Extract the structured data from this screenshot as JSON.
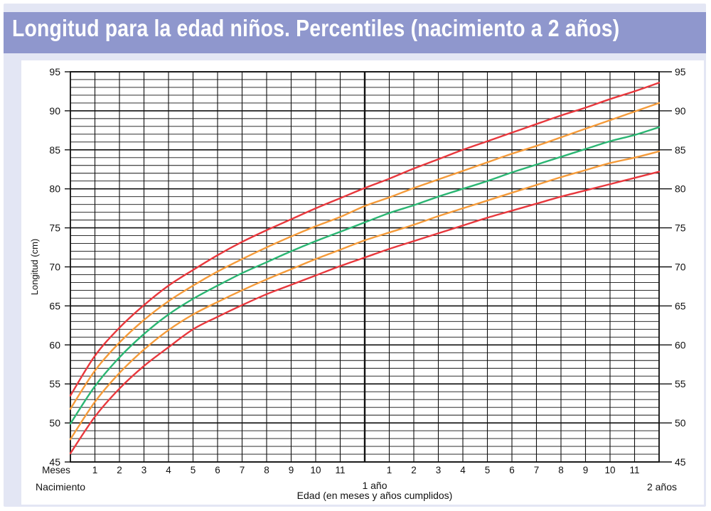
{
  "header": {
    "title": "Longitud para la edad niños. Percentiles (nacimiento a 2 años)"
  },
  "chart_data": {
    "type": "line",
    "title": "Longitud para la edad niños. Percentiles (nacimiento a 2 años)",
    "ylabel": "Longitud (cm)",
    "xlabel": "Edad (en meses y años cumplidos)",
    "xlim": [
      0,
      24
    ],
    "ylim": [
      45,
      95
    ],
    "grid": true,
    "y_ticks": [
      45,
      50,
      55,
      60,
      65,
      70,
      75,
      80,
      85,
      90,
      95
    ],
    "x_tick_labels": [
      "1",
      "2",
      "3",
      "4",
      "5",
      "6",
      "7",
      "8",
      "9",
      "10",
      "11",
      "1",
      "2",
      "3",
      "4",
      "5",
      "6",
      "7",
      "8",
      "9",
      "10",
      "11"
    ],
    "x_axis_caption": "Meses",
    "x_start_label": "Nacimiento",
    "x_mid_label": "1 año",
    "x_end_label": "2 años",
    "colors": {
      "outer": "#e8383d",
      "mid": "#f59b3a",
      "median": "#2bb673",
      "grid": "#111111",
      "title_bar": "#8f97cd",
      "frame": "#e3e6f4"
    },
    "x": [
      0,
      1,
      2,
      3,
      4,
      5,
      6,
      7,
      8,
      9,
      10,
      11,
      12,
      13,
      14,
      15,
      16,
      17,
      18,
      19,
      20,
      21,
      22,
      23,
      24
    ],
    "series": [
      {
        "role": "outer",
        "values": [
          53.5,
          58.6,
          62.2,
          65.1,
          67.6,
          69.6,
          71.5,
          73.2,
          74.7,
          76.1,
          77.5,
          78.8,
          80.1,
          81.3,
          82.6,
          83.8,
          85.0,
          86.1,
          87.2,
          88.3,
          89.4,
          90.4,
          91.5,
          92.5,
          93.6
        ]
      },
      {
        "role": "mid",
        "values": [
          51.8,
          56.7,
          60.3,
          63.2,
          65.6,
          67.6,
          69.4,
          71.0,
          72.5,
          73.9,
          75.2,
          76.4,
          77.8,
          78.9,
          80.1,
          81.2,
          82.3,
          83.4,
          84.5,
          85.5,
          86.6,
          87.7,
          88.8,
          89.9,
          91.0
        ]
      },
      {
        "role": "median",
        "values": [
          49.9,
          54.7,
          58.4,
          61.4,
          63.9,
          65.9,
          67.6,
          69.2,
          70.6,
          72.0,
          73.3,
          74.5,
          75.7,
          76.9,
          77.9,
          79.0,
          80.0,
          81.0,
          82.1,
          83.1,
          84.1,
          85.1,
          86.1,
          86.9,
          87.9
        ]
      },
      {
        "role": "mid",
        "values": [
          47.9,
          52.7,
          56.4,
          59.4,
          61.9,
          63.9,
          65.5,
          67.0,
          68.4,
          69.7,
          71.0,
          72.2,
          73.4,
          74.4,
          75.4,
          76.5,
          77.5,
          78.5,
          79.5,
          80.5,
          81.5,
          82.4,
          83.3,
          84.0,
          84.8
        ]
      },
      {
        "role": "outer",
        "values": [
          46.1,
          50.8,
          54.4,
          57.3,
          59.7,
          62.0,
          63.6,
          65.1,
          66.5,
          67.7,
          68.9,
          70.1,
          71.2,
          72.3,
          73.3,
          74.3,
          75.3,
          76.3,
          77.2,
          78.1,
          79.0,
          79.8,
          80.6,
          81.4,
          82.2
        ]
      }
    ]
  }
}
